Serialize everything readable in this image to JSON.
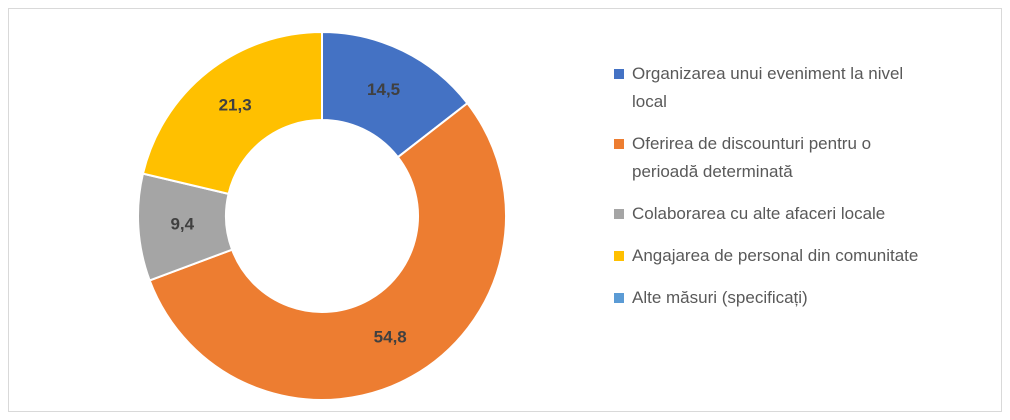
{
  "chart_data": {
    "type": "donut",
    "categories": [
      "Organizarea unui eveniment la nivel local",
      "Oferirea de discounturi pentru o perioadă determinată",
      "Colaborarea cu alte afaceri locale",
      "Angajarea de personal din comunitate",
      "Alte măsuri (specificați)"
    ],
    "values": [
      14.5,
      54.8,
      9.4,
      21.3,
      0
    ],
    "value_labels": [
      "14,5",
      "54,8",
      "9,4",
      "21,3",
      null
    ],
    "colors": [
      "#4472c4",
      "#ed7d31",
      "#a5a5a5",
      "#ffc000",
      "#5b9bd5"
    ],
    "legend": "right"
  }
}
